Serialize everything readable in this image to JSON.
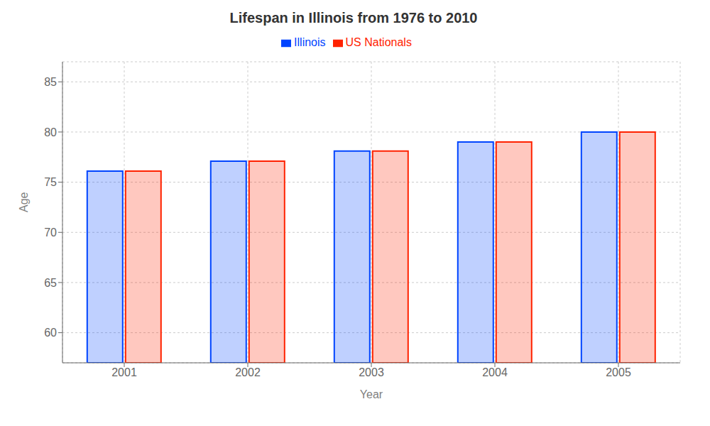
{
  "chart_data": {
    "type": "bar",
    "title": "Lifespan in Illinois from 1976 to 2010",
    "x_label": "Year",
    "y_label": "Age",
    "categories": [
      "2001",
      "2002",
      "2003",
      "2004",
      "2005"
    ],
    "series": [
      {
        "name": "Illinois",
        "color": "#0044ff",
        "values": [
          76.1,
          77.1,
          78.1,
          79.0,
          80.0
        ]
      },
      {
        "name": "US Nationals",
        "color": "#ff2200",
        "values": [
          76.1,
          77.1,
          78.1,
          79.0,
          80.0
        ]
      }
    ],
    "ylim": [
      57,
      87
    ],
    "yticks": [
      60,
      65,
      70,
      75,
      80,
      85
    ],
    "grid": true,
    "legend": "top"
  }
}
